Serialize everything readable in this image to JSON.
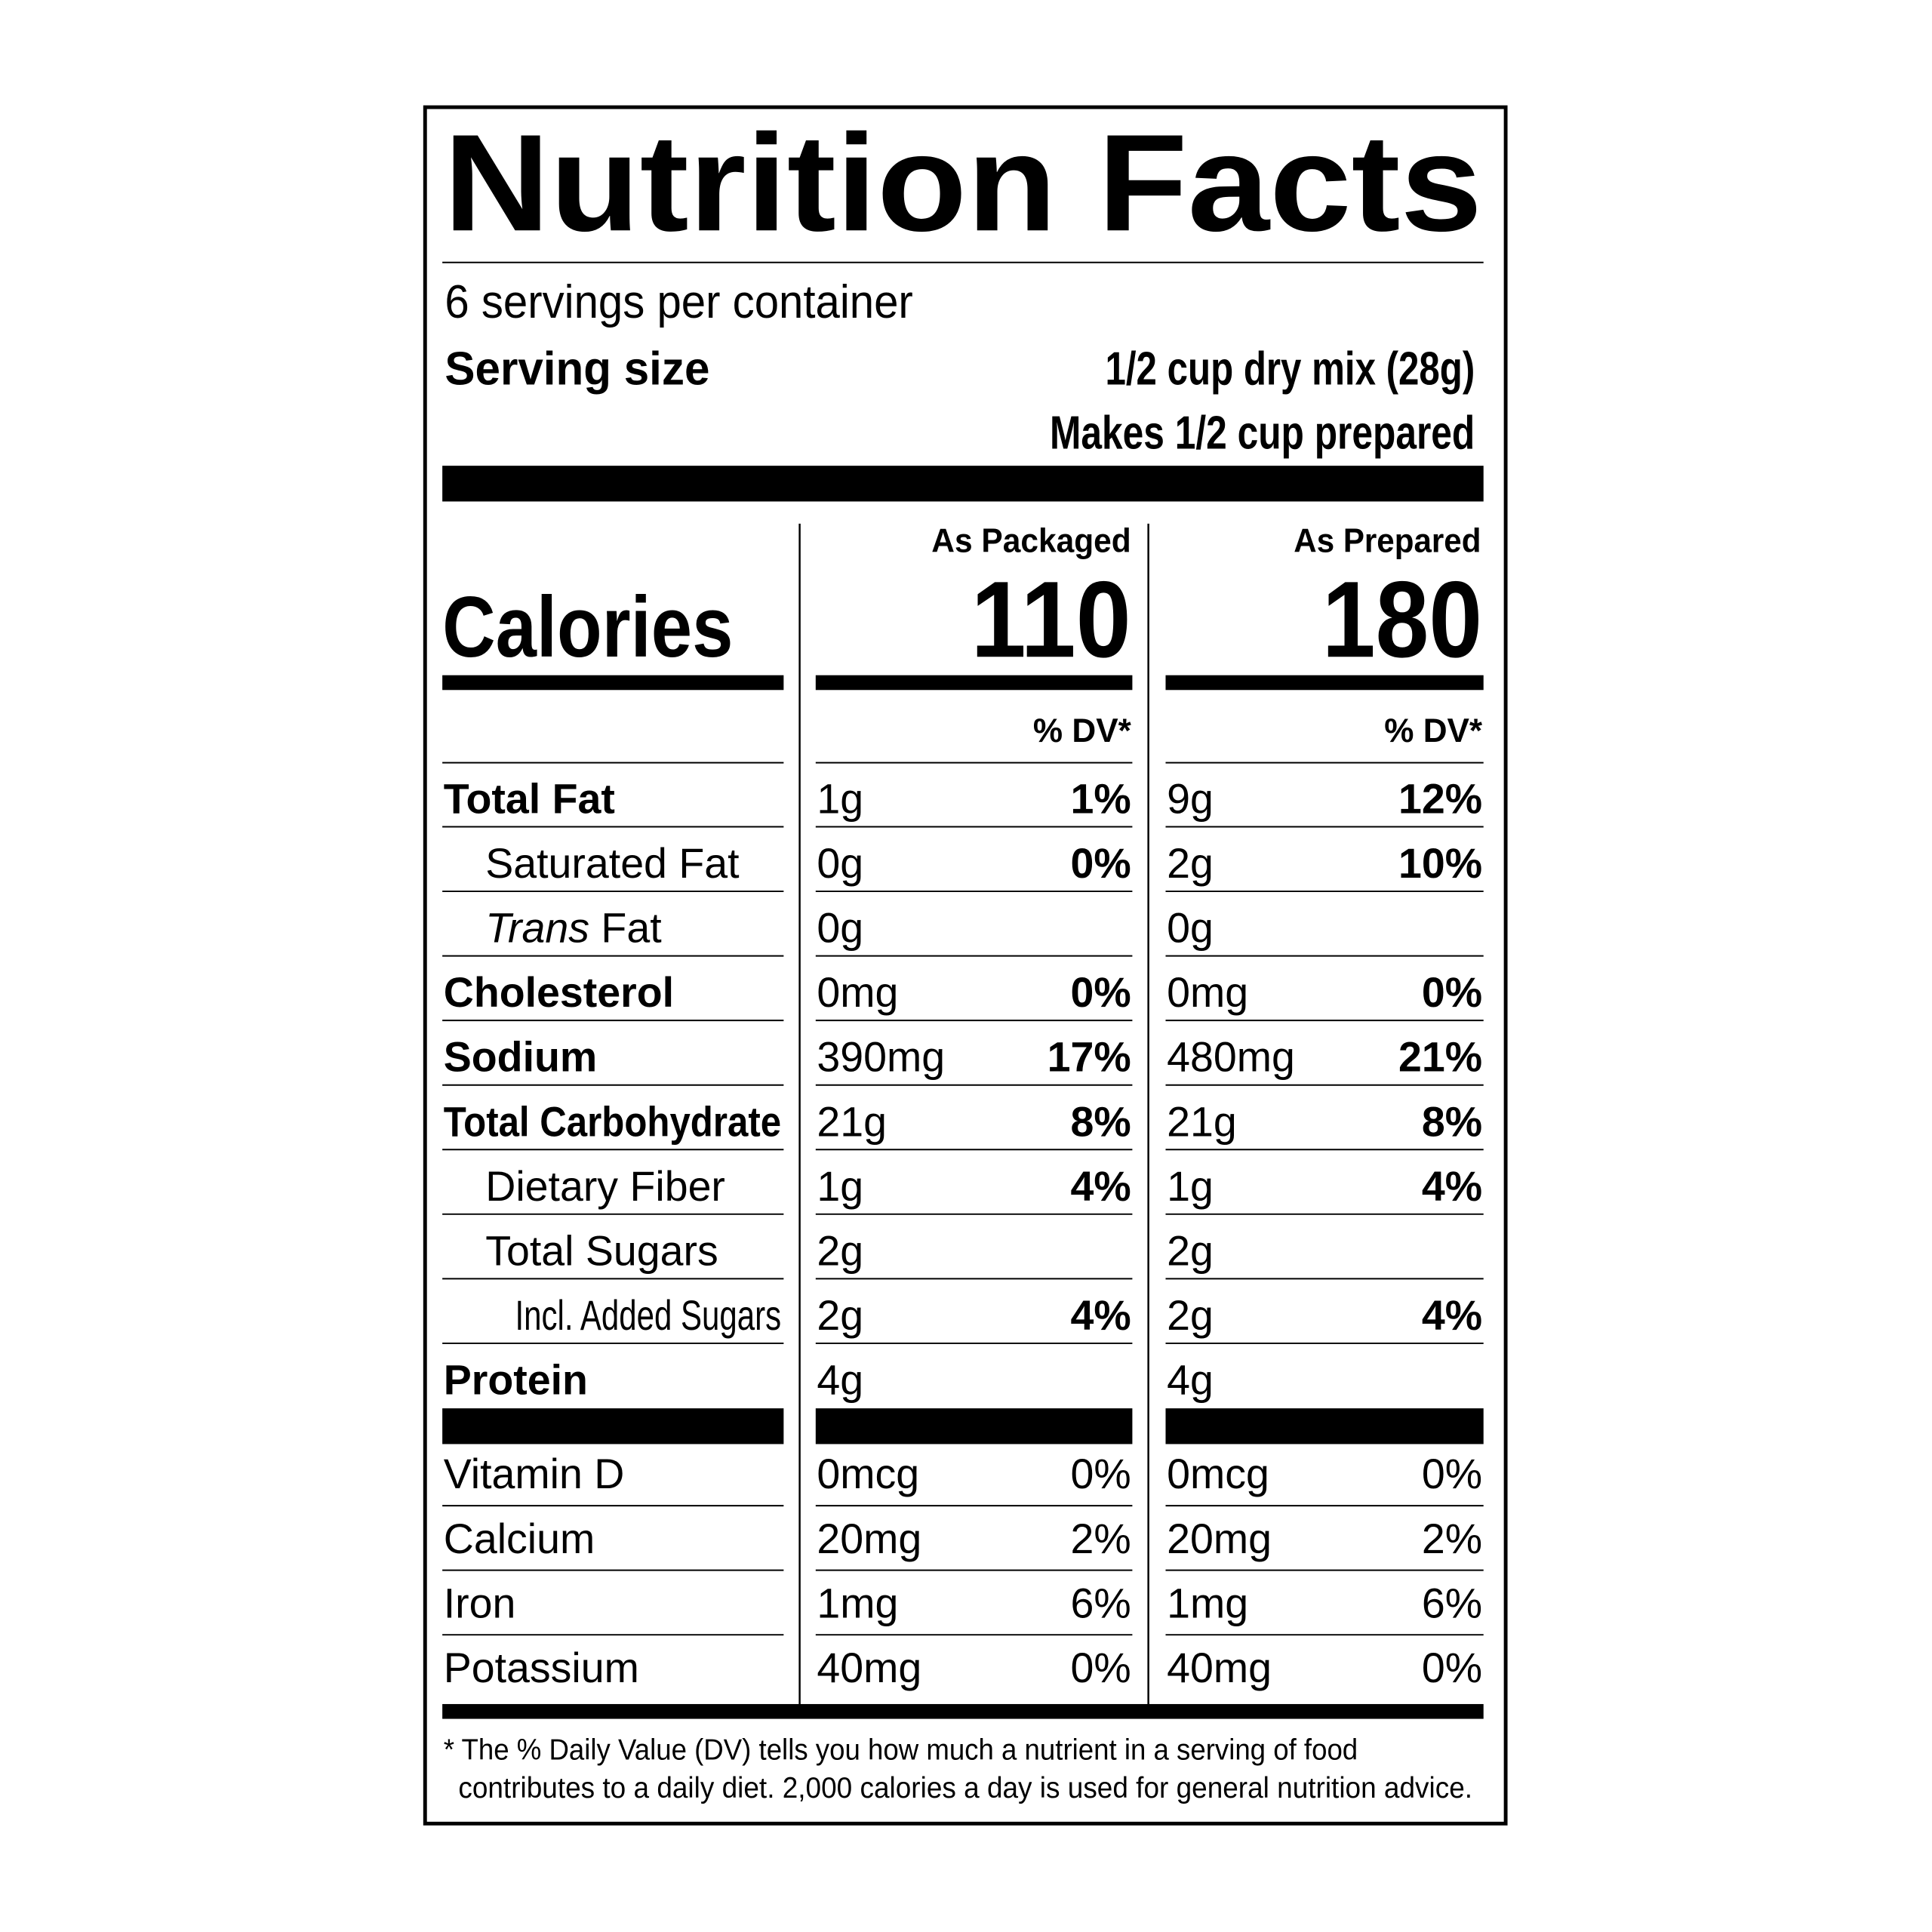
{
  "title": "Nutrition Facts",
  "servings": "6 servings per container",
  "serving_size": {
    "label": "Serving size",
    "value": "1/2 cup dry mix (28g)",
    "prepared": "Makes 1/2 cup prepared"
  },
  "columns": [
    "As Packaged",
    "As Prepared"
  ],
  "calories": {
    "label": "Calories",
    "values": [
      "110",
      "180"
    ]
  },
  "dv_header": [
    "% DV*",
    "% DV*"
  ],
  "nutrients": [
    {
      "name": "Total Fat",
      "bold": true,
      "indent": 0,
      "packaged": [
        "1g",
        "1%"
      ],
      "prepared": [
        "9g",
        "12%"
      ]
    },
    {
      "name": "Saturated Fat",
      "bold": false,
      "indent": 1,
      "packaged": [
        "0g",
        "0%"
      ],
      "prepared": [
        "2g",
        "10%"
      ]
    },
    {
      "name": "Trans Fat",
      "bold": false,
      "indent": 1,
      "italic_first": true,
      "packaged": [
        "0g"
      ],
      "prepared": [
        "0g"
      ]
    },
    {
      "name": "Cholesterol",
      "bold": true,
      "indent": 0,
      "packaged": [
        "0mg",
        "0%"
      ],
      "prepared": [
        "0mg",
        "0%"
      ]
    },
    {
      "name": "Sodium",
      "bold": true,
      "indent": 0,
      "packaged": [
        "390mg",
        "17%"
      ],
      "prepared": [
        "480mg",
        "21%"
      ]
    },
    {
      "name": "Total Carbohydrate",
      "bold": true,
      "indent": 0,
      "packaged": [
        "21g",
        "8%"
      ],
      "prepared": [
        "21g",
        "8%"
      ]
    },
    {
      "name": "Dietary Fiber",
      "bold": false,
      "indent": 1,
      "packaged": [
        "1g",
        "4%"
      ],
      "prepared": [
        "1g",
        "4%"
      ]
    },
    {
      "name": "Total Sugars",
      "bold": false,
      "indent": 1,
      "packaged": [
        "2g"
      ],
      "prepared": [
        "2g"
      ]
    },
    {
      "name": "Incl. Added Sugars",
      "bold": false,
      "indent": 2,
      "packaged": [
        "2g",
        "4%"
      ],
      "prepared": [
        "2g",
        "4%"
      ]
    },
    {
      "name": "Protein",
      "bold": true,
      "indent": 0,
      "packaged": [
        "4g"
      ],
      "prepared": [
        "4g"
      ]
    }
  ],
  "vitamins": [
    {
      "name": "Vitamin D",
      "packaged": [
        "0mcg",
        "0%"
      ],
      "prepared": [
        "0mcg",
        "0%"
      ]
    },
    {
      "name": "Calcium",
      "packaged": [
        "20mg",
        "2%"
      ],
      "prepared": [
        "20mg",
        "2%"
      ]
    },
    {
      "name": "Iron",
      "packaged": [
        "1mg",
        "6%"
      ],
      "prepared": [
        "1mg",
        "6%"
      ]
    },
    {
      "name": "Potassium",
      "packaged": [
        "40mg",
        "0%"
      ],
      "prepared": [
        "40mg",
        "0%"
      ]
    }
  ],
  "footnote": [
    "* The % Daily Value (DV) tells you how much a nutrient in a serving of food",
    "contributes to a daily diet. 2,000 calories a day is used for general nutrition advice."
  ]
}
